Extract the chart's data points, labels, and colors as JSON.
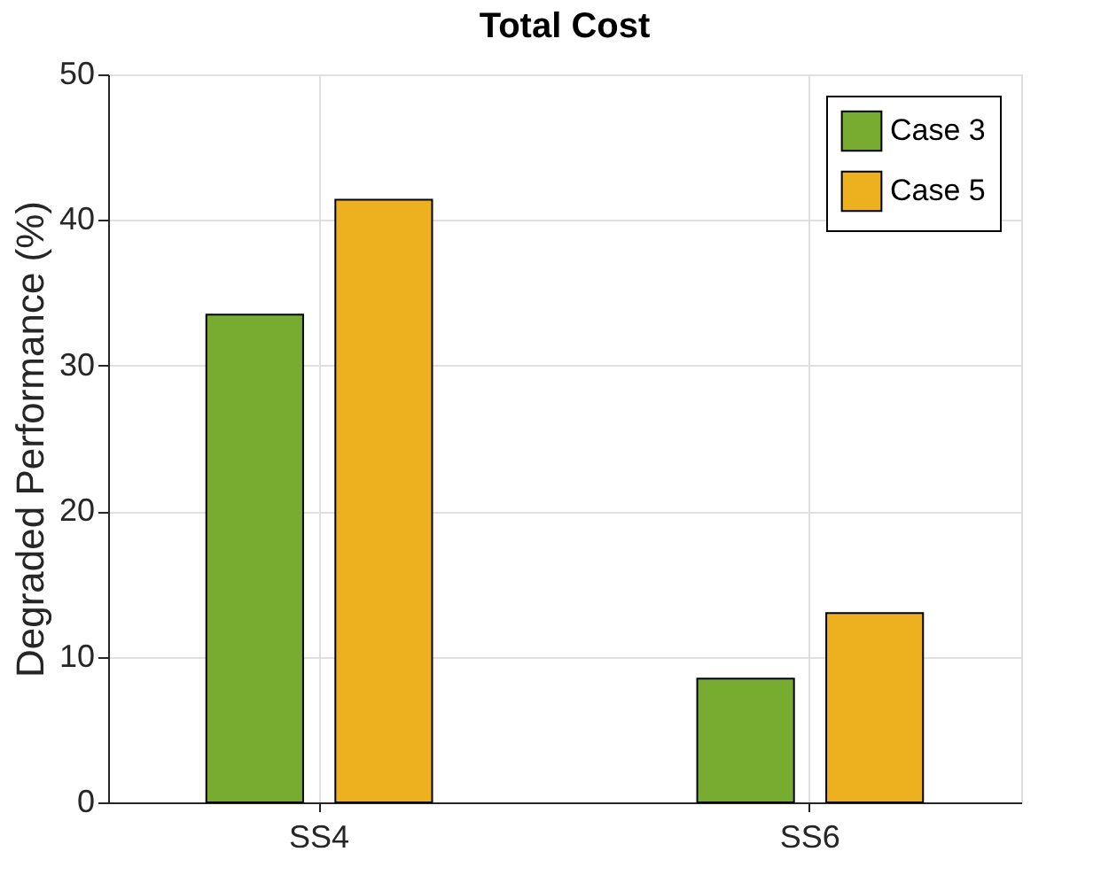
{
  "chart_data": {
    "type": "bar",
    "title": "Total Cost",
    "ylabel": "Degraded Performance (%)",
    "categories": [
      "SS4",
      "SS6"
    ],
    "series": [
      {
        "name": "Case 3",
        "color": "#77ac30",
        "values": [
          33.5,
          8.5
        ]
      },
      {
        "name": "Case 5",
        "color": "#edb120",
        "values": [
          41.4,
          13.0
        ]
      }
    ],
    "ylim": [
      0,
      50
    ],
    "yticks": [
      0,
      10,
      20,
      30,
      40,
      50
    ],
    "grid": true,
    "legend": "top right"
  }
}
